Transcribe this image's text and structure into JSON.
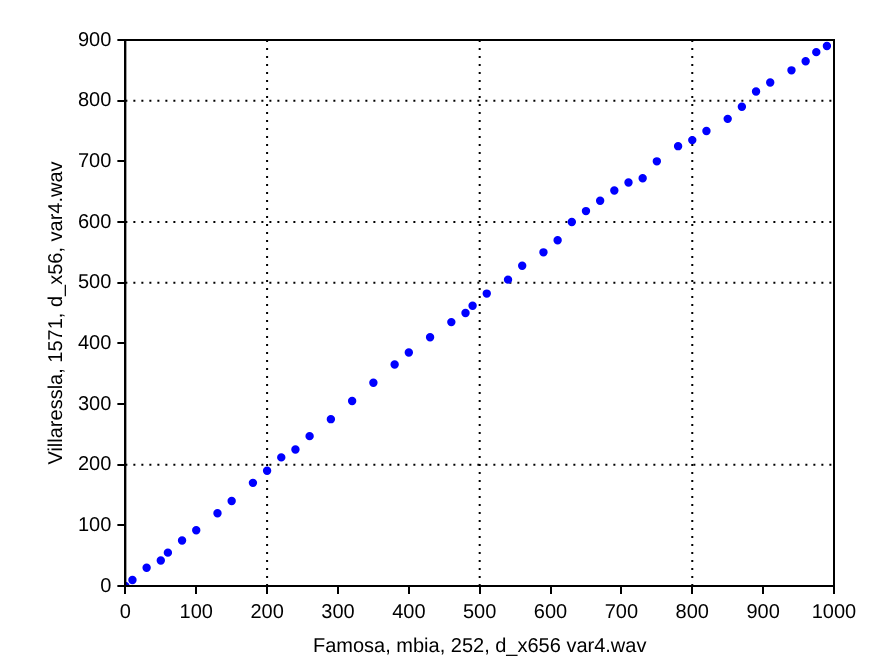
{
  "chart_data": {
    "type": "scatter",
    "xlabel": "Famosa, mbia, 252, d_x656 var4.wav",
    "ylabel": "Villaressla, 1571, d_x56, var4.wav",
    "x": [
      0,
      10,
      30,
      50,
      60,
      80,
      100,
      130,
      150,
      180,
      200,
      220,
      240,
      260,
      290,
      320,
      350,
      380,
      400,
      430,
      460,
      480,
      490,
      510,
      540,
      560,
      590,
      610,
      630,
      650,
      670,
      690,
      710,
      730,
      750,
      780,
      800,
      820,
      850,
      870,
      890,
      910,
      940,
      960,
      975,
      990
    ],
    "series": [
      {
        "color": "#0000ff",
        "values": [
          0,
          10,
          30,
          42,
          55,
          75,
          92,
          120,
          140,
          170,
          190,
          212,
          225,
          247,
          275,
          305,
          335,
          365,
          385,
          410,
          435,
          450,
          462,
          482,
          505,
          528,
          550,
          570,
          600,
          618,
          635,
          652,
          665,
          672,
          700,
          725,
          735,
          750,
          770,
          790,
          815,
          830,
          850,
          865,
          880,
          890
        ]
      }
    ],
    "xlim": [
      0,
      1000
    ],
    "ylim": [
      0,
      900
    ],
    "xticks": [
      0,
      100,
      200,
      300,
      400,
      500,
      600,
      700,
      800,
      900,
      1000
    ],
    "yticks": [
      0,
      100,
      200,
      300,
      400,
      500,
      600,
      700,
      800,
      900
    ],
    "grid": false,
    "marker": "circle",
    "ref_lines": [
      {
        "axis": "x",
        "value": 200,
        "line_style": "dotted"
      },
      {
        "axis": "x",
        "value": 500,
        "line_style": "dotted"
      },
      {
        "axis": "x",
        "value": 800,
        "line_style": "dotted"
      },
      {
        "axis": "y",
        "value": 200,
        "line_style": "dotted"
      },
      {
        "axis": "y",
        "value": 500,
        "line_style": "dotted"
      },
      {
        "axis": "y",
        "value": 600,
        "line_style": "dotted"
      },
      {
        "axis": "y",
        "value": 800,
        "line_style": "dotted"
      }
    ]
  }
}
